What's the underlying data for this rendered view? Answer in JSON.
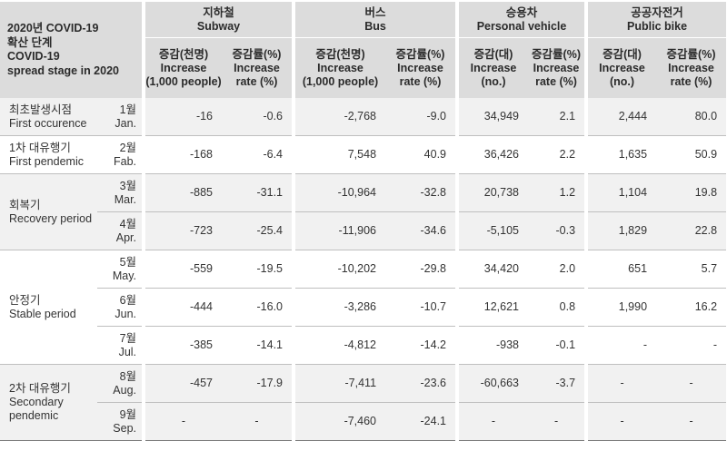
{
  "header": {
    "stage_title_lines": [
      "2020년 COVID-19",
      "확산 단계",
      "COVID-19",
      "spread stage in 2020"
    ],
    "groups": [
      {
        "ko": "지하철",
        "en": "Subway"
      },
      {
        "ko": "버스",
        "en": "Bus"
      },
      {
        "ko": "승용차",
        "en": "Personal vehicle"
      },
      {
        "ko": "공공자전거",
        "en": "Public bike"
      }
    ],
    "subcolumns": [
      {
        "ko": "증감(천명)",
        "en1": "Increase",
        "en2": "(1,000 people)"
      },
      {
        "ko": "증감률(%)",
        "en1": "Increase",
        "en2": "rate (%)"
      },
      {
        "ko": "증감(천명)",
        "en1": "Increase",
        "en2": "(1,000 people)"
      },
      {
        "ko": "증감률(%)",
        "en1": "Increase",
        "en2": "rate (%)"
      },
      {
        "ko": "증감(대)",
        "en1": "Increase",
        "en2": "(no.)"
      },
      {
        "ko": "증감률(%)",
        "en1": "Increase",
        "en2": "rate (%)"
      },
      {
        "ko": "증감(대)",
        "en1": "Increase",
        "en2": "(no.)"
      },
      {
        "ko": "증감률(%)",
        "en1": "Increase",
        "en2": "rate (%)"
      }
    ]
  },
  "stages": [
    {
      "ko": "최초발생시점",
      "en": "First occurence"
    },
    {
      "ko": "1차 대유행기",
      "en": "First pendemic"
    },
    {
      "ko": "회복기",
      "en": "Recovery period"
    },
    {
      "ko": "안정기",
      "en": "Stable period"
    },
    {
      "ko": "2차 대유행기",
      "en": "Secondary pendemic"
    }
  ],
  "rows": [
    {
      "month_ko": "1월",
      "month_en": "Jan.",
      "values": [
        "-16",
        "-0.6",
        "-2,768",
        "-9.0",
        "34,949",
        "2.1",
        "2,444",
        "80.0"
      ]
    },
    {
      "month_ko": "2월",
      "month_en": "Fab.",
      "values": [
        "-168",
        "-6.4",
        "7,548",
        "40.9",
        "36,426",
        "2.2",
        "1,635",
        "50.9"
      ]
    },
    {
      "month_ko": "3월",
      "month_en": "Mar.",
      "values": [
        "-885",
        "-31.1",
        "-10,964",
        "-32.8",
        "20,738",
        "1.2",
        "1,104",
        "19.8"
      ]
    },
    {
      "month_ko": "4월",
      "month_en": "Apr.",
      "values": [
        "-723",
        "-25.4",
        "-11,906",
        "-34.6",
        "-5,105",
        "-0.3",
        "1,829",
        "22.8"
      ]
    },
    {
      "month_ko": "5월",
      "month_en": "May.",
      "values": [
        "-559",
        "-19.5",
        "-10,202",
        "-29.8",
        "34,420",
        "2.0",
        "651",
        "5.7"
      ]
    },
    {
      "month_ko": "6월",
      "month_en": "Jun.",
      "values": [
        "-444",
        "-16.0",
        "-3,286",
        "-10.7",
        "12,621",
        "0.8",
        "1,990",
        "16.2"
      ]
    },
    {
      "month_ko": "7월",
      "month_en": "Jul.",
      "values": [
        "-385",
        "-14.1",
        "-4,812",
        "-14.2",
        "-938",
        "-0.1",
        "-",
        "-"
      ]
    },
    {
      "month_ko": "8월",
      "month_en": "Aug.",
      "values": [
        "-457",
        "-17.9",
        "-7,411",
        "-23.6",
        "-60,663",
        "-3.7",
        "-",
        "-"
      ]
    },
    {
      "month_ko": "9월",
      "month_en": "Sep.",
      "values": [
        "-",
        "-",
        "-7,460",
        "-24.1",
        "-",
        "-",
        "-",
        "-"
      ]
    }
  ]
}
